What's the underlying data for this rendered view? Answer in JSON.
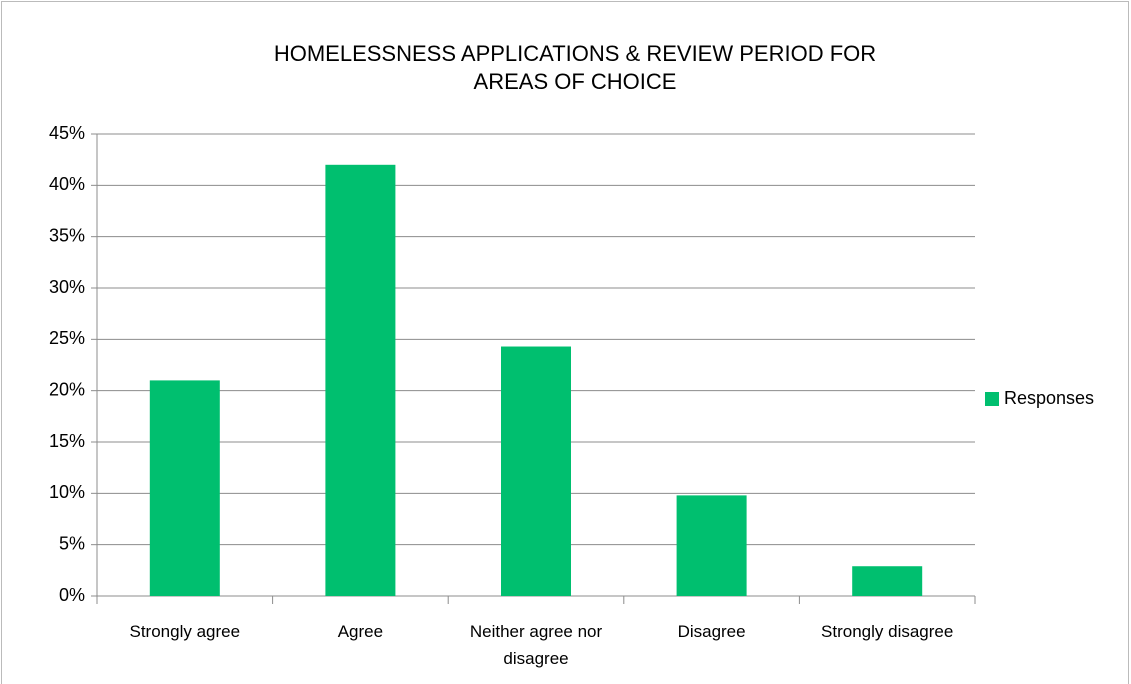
{
  "chart_data": {
    "type": "bar",
    "title": "HOMELESSNESS APPLICATIONS & REVIEW PERIOD FOR AREAS OF CHOICE",
    "categories": [
      "Strongly agree",
      "Agree",
      "Neither agree nor disagree",
      "Disagree",
      "Strongly disagree"
    ],
    "series": [
      {
        "name": "Responses",
        "color": "#00bf6f",
        "values": [
          21,
          42,
          24.3,
          9.8,
          2.9
        ]
      }
    ],
    "ylim": [
      0,
      45
    ],
    "yticks": [
      {
        "value": 0,
        "label": "0%"
      },
      {
        "value": 5,
        "label": "5%"
      },
      {
        "value": 10,
        "label": "10%"
      },
      {
        "value": 15,
        "label": "15%"
      },
      {
        "value": 20,
        "label": "20%"
      },
      {
        "value": 25,
        "label": "25%"
      },
      {
        "value": 30,
        "label": "30%"
      },
      {
        "value": 35,
        "label": "35%"
      },
      {
        "value": 40,
        "label": "40%"
      },
      {
        "value": 45,
        "label": "45%"
      }
    ],
    "grid": true,
    "legend": "right"
  }
}
